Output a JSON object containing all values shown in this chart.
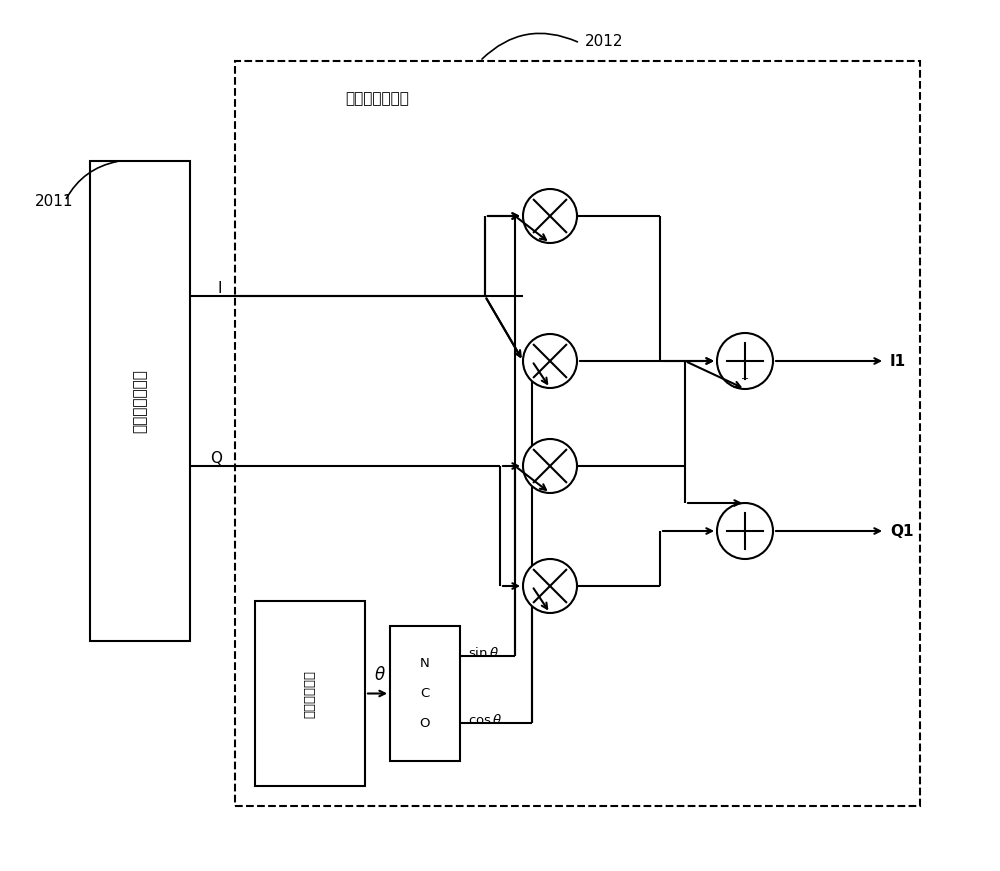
{
  "bg_color": "#ffffff",
  "fig_width": 10.0,
  "fig_height": 8.71,
  "dpi": 100,
  "label_2011": "2011",
  "label_2012": "2012",
  "label_phase_adj": "相位调整子模块",
  "label_baseband": "基带调制子模块",
  "label_phase_gen": "相位产生单元",
  "label_NCO": "NCO",
  "label_I": "I",
  "label_Q": "Q",
  "label_I1": "I1",
  "label_Q1": "Q1",
  "label_theta": "θ",
  "label_sin": "sinθ",
  "label_cos": "cosθ",
  "lw": 1.5,
  "lw_thin": 1.2
}
